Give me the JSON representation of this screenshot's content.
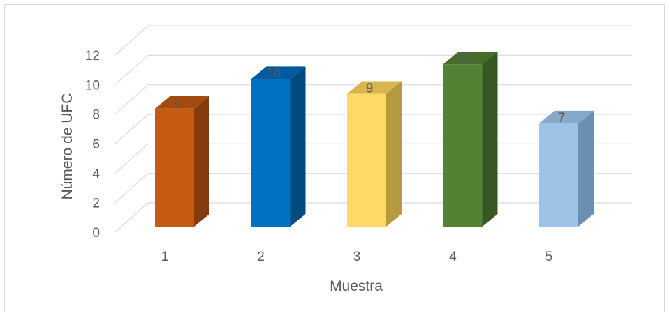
{
  "chart_data": {
    "type": "bar",
    "title": "",
    "xlabel": "Muestra",
    "ylabel": "Número de UFC",
    "categories": [
      "1",
      "2",
      "3",
      "4",
      "5"
    ],
    "values": [
      8,
      10,
      9,
      11,
      7
    ],
    "data_labels": [
      "8",
      "10",
      "9",
      "11",
      "7"
    ],
    "ylim": [
      0,
      12
    ],
    "yticks": [
      0,
      2,
      4,
      6,
      8,
      10,
      12
    ],
    "ytick_labels": [
      "0",
      "2",
      "4",
      "6",
      "8",
      "10",
      "12"
    ],
    "grid": true,
    "legend": "none",
    "bar_colors": [
      "#c55a11",
      "#0070c0",
      "#ffd966",
      "#548235",
      "#9dc3e6"
    ],
    "bar_side_colors": [
      "#843c0c",
      "#004b80",
      "#b59a40",
      "#385723",
      "#6a8fb0"
    ],
    "bar_top_colors": [
      "#a64b0e",
      "#005a9e",
      "#d9b64d",
      "#466d2c",
      "#86a9c9"
    ],
    "grid_color": "#d9d9d9",
    "style": "3d-column"
  }
}
